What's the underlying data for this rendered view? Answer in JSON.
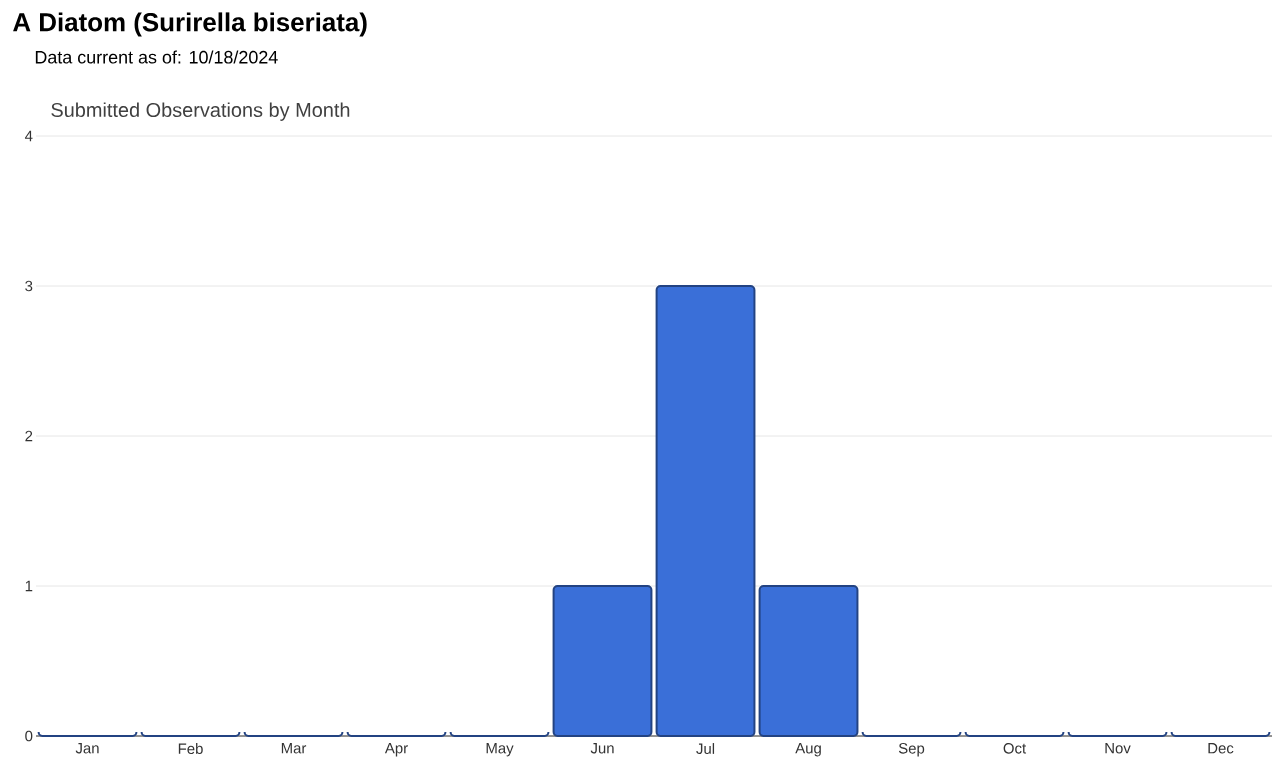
{
  "chart_data": {
    "type": "bar",
    "title": "A Diatom   (Surirella biseriata)",
    "subtitle": "Data current as of: 10/18/2024",
    "annotations": [
      "Submitted Observations by Month"
    ],
    "categories": [
      "Jan",
      "Feb",
      "Mar",
      "Apr",
      "May",
      "Jun",
      "Jul",
      "Aug",
      "Sep",
      "Oct",
      "Nov",
      "Dec"
    ],
    "values": [
      0,
      0,
      0,
      0,
      0,
      1,
      3,
      1,
      0,
      0,
      0,
      0
    ],
    "color": "#3a6fd8",
    "ylim": [
      0,
      4
    ],
    "yticks": [
      0,
      1,
      2,
      3,
      4
    ],
    "grid": "y"
  }
}
